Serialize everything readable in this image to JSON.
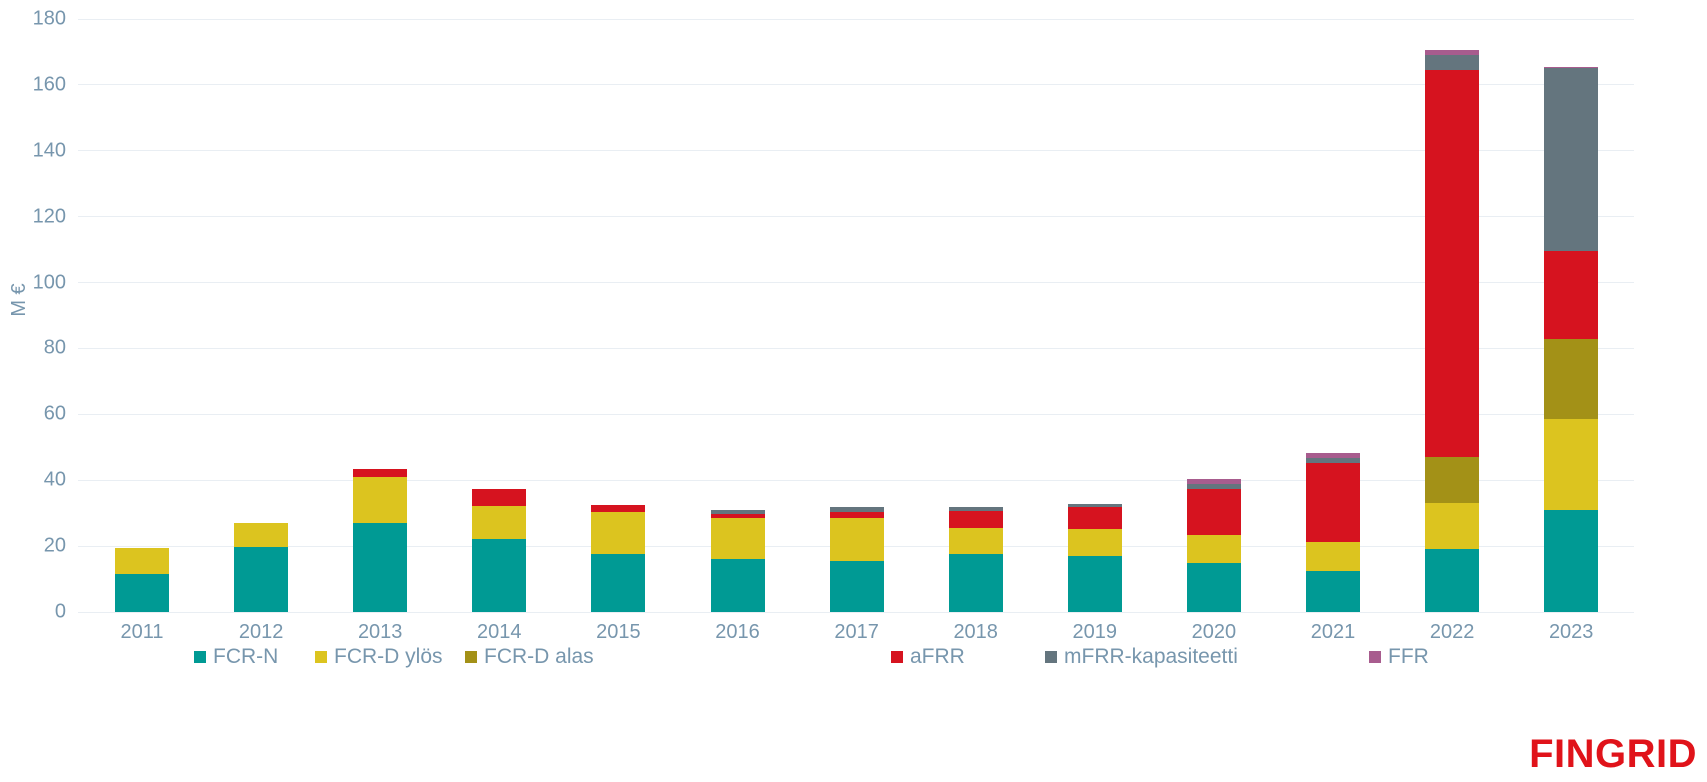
{
  "branding": {
    "logo_text": "FINGRID",
    "logo_color": "#e0131a"
  },
  "colors": {
    "axis_text": "#7796ad",
    "gridline": "#e9eef3",
    "background": "#ffffff"
  },
  "chart_data": {
    "type": "bar",
    "stacked": true,
    "title": "",
    "xlabel": "",
    "ylabel": "M €",
    "ylim": [
      0,
      180
    ],
    "yticks": [
      0,
      20,
      40,
      60,
      80,
      100,
      120,
      140,
      160,
      180
    ],
    "grid": "horizontal",
    "legend_position": "bottom",
    "categories": [
      "2011",
      "2012",
      "2013",
      "2014",
      "2015",
      "2016",
      "2017",
      "2018",
      "2019",
      "2020",
      "2021",
      "2022",
      "2023"
    ],
    "series": [
      {
        "name": "FCR-N",
        "color": "#009a94",
        "values": [
          11.5,
          19.6,
          27.0,
          22.3,
          17.5,
          16.0,
          15.5,
          17.5,
          17.0,
          15.0,
          12.5,
          19.0,
          31.0
        ]
      },
      {
        "name": "FCR-D ylös",
        "color": "#dcc41f",
        "values": [
          8.0,
          7.3,
          14.0,
          10.0,
          13.0,
          12.5,
          13.0,
          8.0,
          8.2,
          8.5,
          8.7,
          14.0,
          27.5
        ]
      },
      {
        "name": "FCR-D alas",
        "color": "#a39117",
        "values": [
          0,
          0,
          0,
          0,
          0,
          0,
          0,
          0,
          0,
          0,
          0,
          14.0,
          24.5
        ]
      },
      {
        "name": "aFRR",
        "color": "#d6131f",
        "values": [
          0,
          0,
          2.3,
          5.0,
          2.0,
          1.3,
          2.0,
          5.2,
          6.7,
          13.8,
          24.0,
          117.5,
          26.5
        ]
      },
      {
        "name": "mFRR-kapasiteetti",
        "color": "#64757e",
        "values": [
          0,
          0,
          0,
          0,
          0,
          1.2,
          1.3,
          1.1,
          0.8,
          1.7,
          1.5,
          4.7,
          55.5
        ]
      },
      {
        "name": "FFR",
        "color": "#a85c8e",
        "values": [
          0,
          0,
          0,
          0,
          0,
          0,
          0,
          0,
          0,
          1.3,
          1.6,
          1.5,
          0.5
        ]
      }
    ]
  }
}
